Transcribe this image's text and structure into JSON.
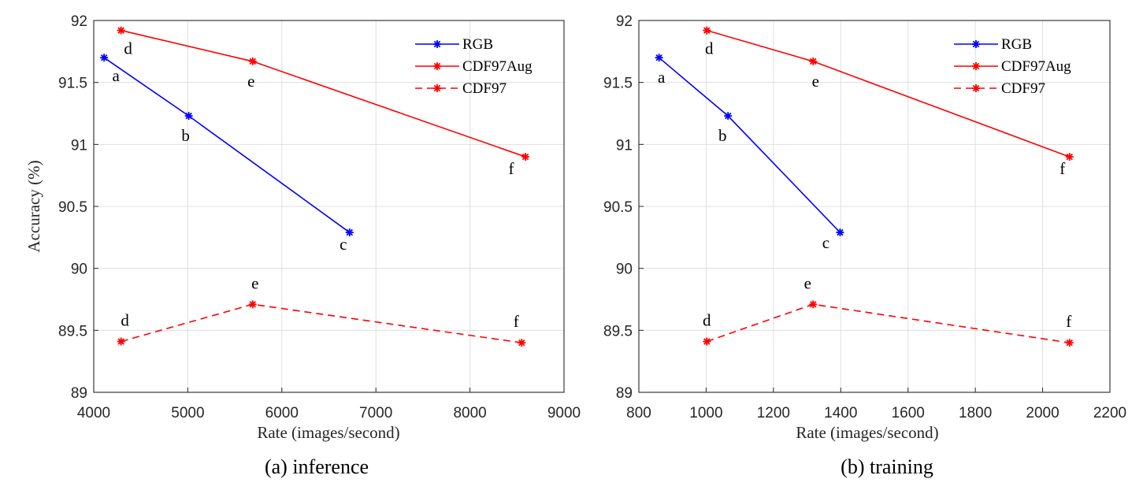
{
  "chart_data": [
    {
      "type": "line",
      "caption": "(a) inference",
      "xlabel": "Rate (images/second)",
      "ylabel": "Accuracy (%)",
      "xlim": [
        4000,
        9000
      ],
      "ylim": [
        89,
        92
      ],
      "xticks": [
        "4000",
        "5000",
        "6000",
        "7000",
        "8000",
        "9000"
      ],
      "yticks": [
        "89",
        "89.5",
        "90",
        "90.5",
        "91",
        "91.5",
        "92"
      ],
      "grid": true,
      "legend": "top-right",
      "series": [
        {
          "name": "RGB",
          "color": "#0000ff",
          "dash": "solid",
          "marker": "asterisk",
          "points": [
            {
              "x": 4110,
              "y": 91.7,
              "label": "a"
            },
            {
              "x": 5010,
              "y": 91.23,
              "label": "b"
            },
            {
              "x": 6720,
              "y": 90.29,
              "label": "c"
            }
          ]
        },
        {
          "name": "CDF97Aug",
          "color": "#ff0000",
          "dash": "solid",
          "marker": "asterisk",
          "points": [
            {
              "x": 4290,
              "y": 91.92,
              "label": "d"
            },
            {
              "x": 5690,
              "y": 91.67,
              "label": "e"
            },
            {
              "x": 8590,
              "y": 90.9,
              "label": "f"
            }
          ]
        },
        {
          "name": "CDF97",
          "color": "#ff0000",
          "dash": "dashed",
          "marker": "asterisk",
          "points": [
            {
              "x": 4290,
              "y": 89.41,
              "label": "d"
            },
            {
              "x": 5690,
              "y": 89.71,
              "label": "e"
            },
            {
              "x": 8550,
              "y": 89.4,
              "label": "f"
            }
          ]
        }
      ]
    },
    {
      "type": "line",
      "caption": "(b) training",
      "xlabel": "Rate (images/second)",
      "ylabel": "",
      "xlim": [
        800,
        2200
      ],
      "ylim": [
        89,
        92
      ],
      "xticks": [
        "800",
        "1000",
        "1200",
        "1400",
        "1600",
        "1800",
        "2000",
        "2200"
      ],
      "yticks": [
        "89",
        "89.5",
        "90",
        "90.5",
        "91",
        "91.5",
        "92"
      ],
      "grid": true,
      "legend": "top-right",
      "series": [
        {
          "name": "RGB",
          "color": "#0000ff",
          "dash": "solid",
          "marker": "asterisk",
          "points": [
            {
              "x": 860,
              "y": 91.7,
              "label": "a"
            },
            {
              "x": 1065,
              "y": 91.23,
              "label": "b"
            },
            {
              "x": 1398,
              "y": 90.29,
              "label": "c"
            }
          ]
        },
        {
          "name": "CDF97Aug",
          "color": "#ff0000",
          "dash": "solid",
          "marker": "asterisk",
          "points": [
            {
              "x": 1002,
              "y": 91.92,
              "label": "d"
            },
            {
              "x": 1318,
              "y": 91.67,
              "label": "e"
            },
            {
              "x": 2080,
              "y": 90.9,
              "label": "f"
            }
          ]
        },
        {
          "name": "CDF97",
          "color": "#ff0000",
          "dash": "dashed",
          "marker": "asterisk",
          "points": [
            {
              "x": 1002,
              "y": 89.41,
              "label": "d"
            },
            {
              "x": 1318,
              "y": 89.71,
              "label": "e"
            },
            {
              "x": 2080,
              "y": 89.4,
              "label": "f"
            }
          ]
        }
      ]
    }
  ]
}
